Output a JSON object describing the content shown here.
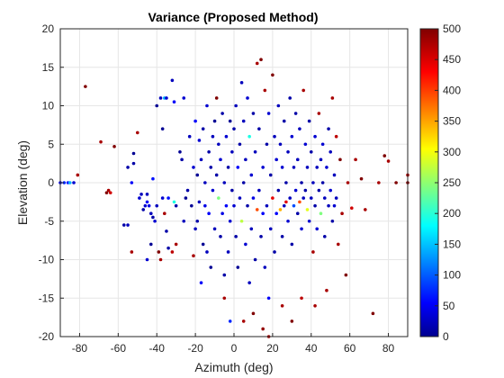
{
  "chart_data": {
    "type": "scatter",
    "title": "Variance (Proposed Method)",
    "xlabel": "Azimuth (deg)",
    "ylabel": "Elevation (deg)",
    "xlim": [
      -90,
      90
    ],
    "ylim": [
      -20,
      20
    ],
    "xticks": [
      -80,
      -60,
      -40,
      -20,
      0,
      20,
      40,
      60,
      80
    ],
    "yticks": [
      -20,
      -15,
      -10,
      -5,
      0,
      5,
      10,
      15,
      20
    ],
    "grid": true,
    "colormap": "jet",
    "colorbar": {
      "min": 0,
      "max": 500,
      "ticks": [
        0,
        50,
        100,
        150,
        200,
        250,
        300,
        350,
        400,
        450,
        500
      ]
    },
    "points": [
      [
        -90,
        0,
        60
      ],
      [
        -88,
        0,
        80
      ],
      [
        -86,
        0,
        70
      ],
      [
        -85,
        0,
        150
      ],
      [
        -83,
        0,
        40
      ],
      [
        -81,
        1,
        480
      ],
      [
        -77,
        12.5,
        500
      ],
      [
        -69,
        5.3,
        480
      ],
      [
        -66,
        -1.3,
        500
      ],
      [
        -65,
        -1,
        480
      ],
      [
        -64,
        -1.3,
        460
      ],
      [
        -62,
        4.7,
        500
      ],
      [
        -57,
        -5.5,
        20
      ],
      [
        -55,
        -5.5,
        30
      ],
      [
        -55,
        2,
        20
      ],
      [
        -53,
        -9,
        480
      ],
      [
        -53,
        0,
        60
      ],
      [
        -52,
        3.8,
        10
      ],
      [
        -52,
        2.5,
        20
      ],
      [
        -50,
        6.5,
        480
      ],
      [
        -49,
        -2,
        40
      ],
      [
        -48,
        -1.5,
        30
      ],
      [
        -47,
        -3.5,
        20
      ],
      [
        -46,
        -3,
        40
      ],
      [
        -45,
        -1.5,
        30
      ],
      [
        -45,
        -2.5,
        60
      ],
      [
        -45,
        -10,
        40
      ],
      [
        -44,
        -3,
        50
      ],
      [
        -43,
        -4,
        30
      ],
      [
        -43,
        -8,
        10
      ],
      [
        -42,
        -4.5,
        20
      ],
      [
        -42,
        0.5,
        70
      ],
      [
        -41,
        -5,
        40
      ],
      [
        -40,
        -3,
        30
      ],
      [
        -40,
        10,
        10
      ],
      [
        -39,
        -9,
        500
      ],
      [
        -38,
        11,
        30
      ],
      [
        -38,
        -10,
        480
      ],
      [
        -37,
        -2,
        40
      ],
      [
        -37,
        7,
        10
      ],
      [
        -36,
        11,
        150
      ],
      [
        -36,
        -4,
        480
      ],
      [
        -35,
        11,
        40
      ],
      [
        -35,
        -6.3,
        20
      ],
      [
        -34,
        -8.5,
        20
      ],
      [
        -34,
        -2,
        70
      ],
      [
        -32,
        -9,
        470
      ],
      [
        -32,
        13.3,
        30
      ],
      [
        -31,
        10.5,
        60
      ],
      [
        -31,
        -2.5,
        200
      ],
      [
        -30,
        -8,
        480
      ],
      [
        -30,
        -3,
        20
      ],
      [
        -28,
        4,
        10
      ],
      [
        -27,
        3,
        20
      ],
      [
        -26,
        -5,
        30
      ],
      [
        -26,
        11,
        40
      ],
      [
        -25,
        -2,
        10
      ],
      [
        -24,
        -1,
        20
      ],
      [
        -23,
        6,
        30
      ],
      [
        -22,
        -3,
        10
      ],
      [
        -21,
        -9.5,
        480
      ],
      [
        -21,
        2,
        40
      ],
      [
        -20,
        -6,
        30
      ],
      [
        -20,
        8,
        60
      ],
      [
        -19,
        -5,
        20
      ],
      [
        -19,
        1,
        10
      ],
      [
        -18,
        5.5,
        40
      ],
      [
        -18,
        -2.5,
        30
      ],
      [
        -17,
        3,
        30
      ],
      [
        -17,
        -13,
        60
      ],
      [
        -16,
        7,
        20
      ],
      [
        -16,
        -8,
        10
      ],
      [
        -15,
        0,
        30
      ],
      [
        -15,
        -3,
        50
      ],
      [
        -14,
        10,
        40
      ],
      [
        -14,
        -9,
        30
      ],
      [
        -13,
        4,
        20
      ],
      [
        -13,
        -4,
        60
      ],
      [
        -12,
        2,
        20
      ],
      [
        -12,
        -11,
        10
      ],
      [
        -11,
        6,
        30
      ],
      [
        -11,
        -1,
        40
      ],
      [
        -10,
        8,
        10
      ],
      [
        -10,
        -6,
        30
      ],
      [
        -9,
        11,
        500
      ],
      [
        -9,
        1,
        20
      ],
      [
        -8,
        -2,
        250
      ],
      [
        -8,
        5,
        30
      ],
      [
        -7,
        -7,
        20
      ],
      [
        -7,
        3,
        40
      ],
      [
        -6,
        9,
        20
      ],
      [
        -6,
        -4,
        50
      ],
      [
        -5,
        0,
        30
      ],
      [
        -5,
        -12,
        20
      ],
      [
        -4,
        6,
        40
      ],
      [
        -4,
        -3,
        60
      ],
      [
        -3,
        2,
        20
      ],
      [
        -3,
        -9,
        30
      ],
      [
        -2,
        8,
        10
      ],
      [
        -2,
        -5,
        40
      ],
      [
        -1,
        4,
        30
      ],
      [
        -1,
        -1,
        20
      ],
      [
        0,
        7,
        20
      ],
      [
        0,
        -3,
        40
      ],
      [
        1,
        10,
        30
      ],
      [
        1,
        -7,
        20
      ],
      [
        2,
        2,
        60
      ],
      [
        2,
        -11,
        10
      ],
      [
        3,
        5,
        20
      ],
      [
        3,
        -2,
        30
      ],
      [
        4,
        13,
        30
      ],
      [
        4,
        -5,
        280
      ],
      [
        5,
        8,
        30
      ],
      [
        5,
        0,
        20
      ],
      [
        6,
        -8,
        40
      ],
      [
        6,
        3,
        30
      ],
      [
        7,
        11,
        40
      ],
      [
        7,
        -3,
        20
      ],
      [
        8,
        6,
        200
      ],
      [
        8,
        -13,
        30
      ],
      [
        9,
        1,
        40
      ],
      [
        9,
        -6,
        30
      ],
      [
        10,
        9,
        20
      ],
      [
        10,
        -2,
        50
      ],
      [
        11,
        4,
        30
      ],
      [
        11,
        -10,
        20
      ],
      [
        12,
        15.5,
        480
      ],
      [
        12,
        -3.5,
        400
      ],
      [
        13,
        7,
        20
      ],
      [
        13,
        -1,
        30
      ],
      [
        14,
        16,
        500
      ],
      [
        14,
        -7,
        20
      ],
      [
        15,
        2,
        40
      ],
      [
        15,
        -4,
        60
      ],
      [
        16,
        12,
        480
      ],
      [
        16,
        -11,
        30
      ],
      [
        17,
        5,
        20
      ],
      [
        17,
        -3,
        30
      ],
      [
        18,
        9,
        40
      ],
      [
        18,
        -15,
        60
      ],
      [
        19,
        1,
        20
      ],
      [
        19,
        -6,
        30
      ],
      [
        20,
        14,
        500
      ],
      [
        20,
        -2,
        450
      ],
      [
        21,
        6,
        30
      ],
      [
        21,
        -9,
        20
      ],
      [
        22,
        3,
        40
      ],
      [
        22,
        -4,
        60
      ],
      [
        23,
        10,
        30
      ],
      [
        23,
        -1,
        20
      ],
      [
        24,
        -3.5,
        350
      ],
      [
        24,
        5,
        30
      ],
      [
        25,
        -7,
        20
      ],
      [
        25,
        2,
        40
      ],
      [
        26,
        8,
        20
      ],
      [
        26,
        -3,
        30
      ],
      [
        27,
        -2.5,
        450
      ],
      [
        27,
        0,
        20
      ],
      [
        28,
        4,
        30
      ],
      [
        28,
        -5,
        40
      ],
      [
        29,
        11,
        20
      ],
      [
        29,
        -2,
        30
      ],
      [
        30,
        6,
        40
      ],
      [
        30,
        -8,
        20
      ],
      [
        31,
        -3,
        100
      ],
      [
        31,
        2,
        30
      ],
      [
        32,
        9,
        20
      ],
      [
        32,
        -1,
        40
      ],
      [
        33,
        3,
        30
      ],
      [
        33,
        -4,
        20
      ],
      [
        34,
        -2.5,
        400
      ],
      [
        34,
        7,
        30
      ],
      [
        35,
        0,
        20
      ],
      [
        35,
        -6,
        40
      ],
      [
        36,
        12,
        480
      ],
      [
        36,
        -2,
        30
      ],
      [
        37,
        5,
        40
      ],
      [
        37,
        -1,
        20
      ],
      [
        38,
        -3.5,
        300
      ],
      [
        38,
        2,
        30
      ],
      [
        39,
        8,
        20
      ],
      [
        39,
        -5,
        40
      ],
      [
        40,
        -2,
        30
      ],
      [
        40,
        4,
        20
      ],
      [
        41,
        -9,
        480
      ],
      [
        41,
        0,
        30
      ],
      [
        42,
        6,
        40
      ],
      [
        42,
        -3,
        20
      ],
      [
        43,
        2,
        30
      ],
      [
        43,
        -6,
        40
      ],
      [
        44,
        -1,
        20
      ],
      [
        44,
        9,
        480
      ],
      [
        45,
        3,
        30
      ],
      [
        45,
        -4,
        250
      ],
      [
        46,
        0,
        20
      ],
      [
        46,
        5,
        40
      ],
      [
        47,
        -2,
        30
      ],
      [
        47,
        -7,
        20
      ],
      [
        48,
        2,
        40
      ],
      [
        48,
        -14,
        480
      ],
      [
        49,
        -3,
        30
      ],
      [
        49,
        7,
        20
      ],
      [
        50,
        4,
        30
      ],
      [
        50,
        -1,
        40
      ],
      [
        51,
        -5,
        20
      ],
      [
        51,
        11,
        480
      ],
      [
        52,
        1,
        30
      ],
      [
        52,
        -3,
        40
      ],
      [
        53,
        6,
        470
      ],
      [
        53,
        -2,
        30
      ],
      [
        54,
        -8,
        480
      ],
      [
        55,
        3,
        500
      ],
      [
        56,
        -4,
        480
      ],
      [
        58,
        -12,
        500
      ],
      [
        59,
        0,
        480
      ],
      [
        61,
        -3.3,
        460
      ],
      [
        63,
        3,
        480
      ],
      [
        66,
        0.5,
        500
      ],
      [
        68,
        -3.5,
        480
      ],
      [
        72,
        -17,
        500
      ],
      [
        75,
        0,
        480
      ],
      [
        78,
        3.5,
        500
      ],
      [
        80,
        2.8,
        480
      ],
      [
        84,
        0,
        500
      ],
      [
        90,
        1,
        480
      ],
      [
        90,
        0,
        500
      ],
      [
        -5,
        -15,
        480
      ],
      [
        -2,
        -18,
        80
      ],
      [
        5,
        -18,
        480
      ],
      [
        10,
        -17,
        500
      ],
      [
        15,
        -19,
        490
      ],
      [
        18,
        -20,
        480
      ],
      [
        25,
        -16,
        480
      ],
      [
        30,
        -18,
        500
      ],
      [
        35,
        -15,
        470
      ],
      [
        42,
        -16,
        480
      ]
    ]
  }
}
